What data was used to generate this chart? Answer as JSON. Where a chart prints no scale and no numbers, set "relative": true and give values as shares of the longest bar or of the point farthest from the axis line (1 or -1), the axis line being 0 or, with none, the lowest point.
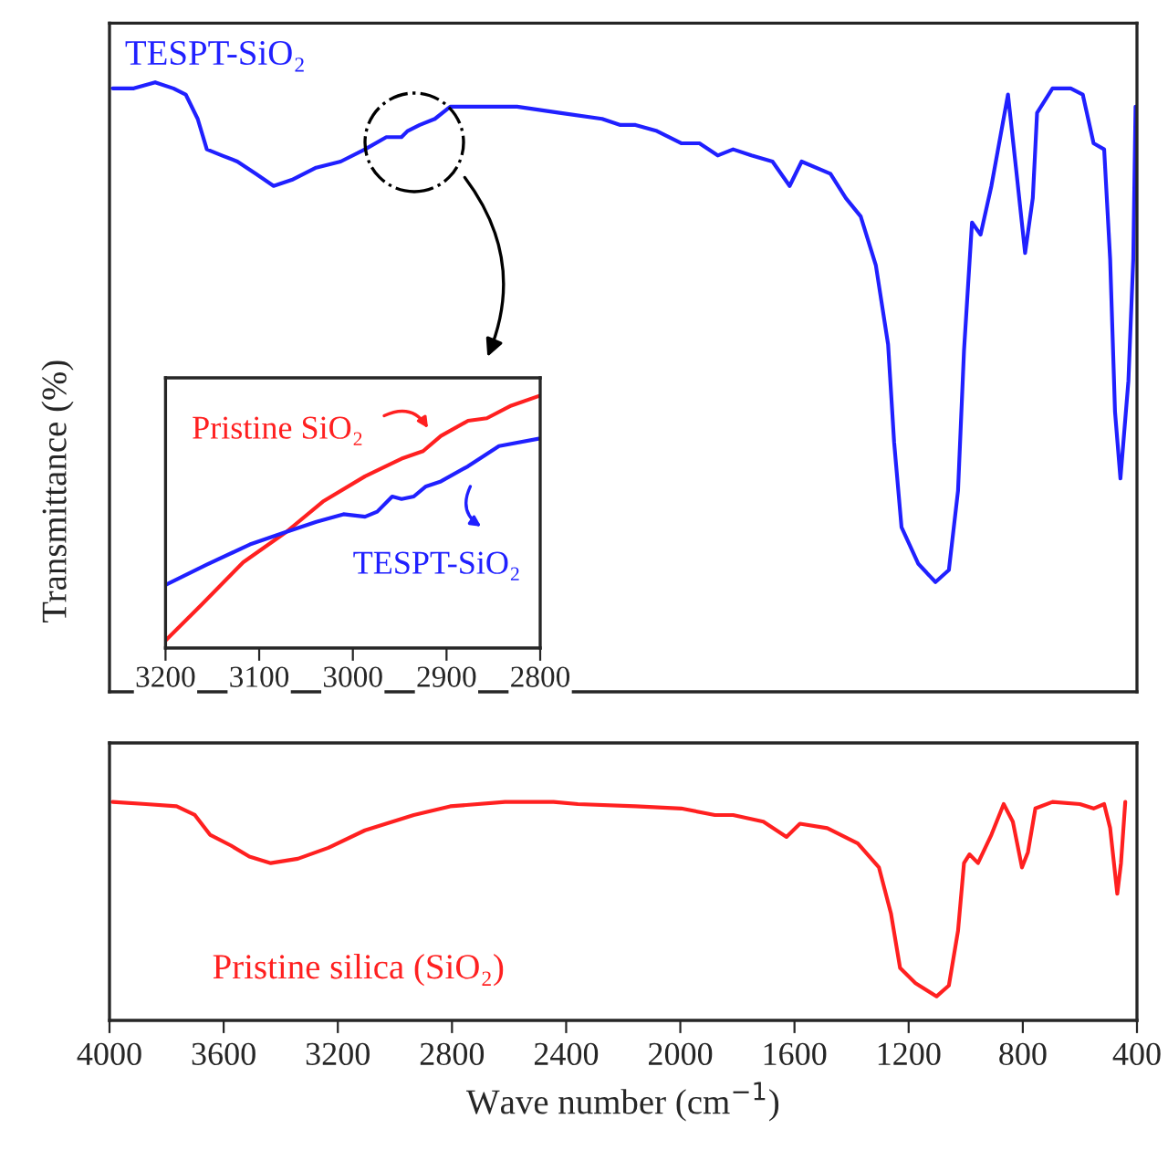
{
  "chart_data": [
    {
      "type": "line",
      "ylabel": "Transmittance (%)",
      "relative": true,
      "xlim": [
        4000,
        400
      ],
      "tick_labels": false,
      "legend": false,
      "grid": false,
      "series": [
        {
          "name": "TESPT-SiO₂",
          "color": "#2020ff",
          "x": [
            3989,
            3915,
            3840,
            3776,
            3733,
            3691,
            3659,
            3606,
            3552,
            3488,
            3425,
            3361,
            3276,
            3190,
            3105,
            3030,
            2977,
            2956,
            2913,
            2860,
            2806,
            2700,
            2572,
            2423,
            2274,
            2210,
            2157,
            2082,
            1997,
            1933,
            1869,
            1815,
            1751,
            1677,
            1617,
            1575,
            1474,
            1420,
            1368,
            1315,
            1272,
            1251,
            1225,
            1166,
            1106,
            1059,
            1027,
            1006,
            978,
            948,
            910,
            852,
            824,
            792,
            765,
            750,
            696,
            632,
            590,
            552,
            515,
            494,
            477,
            458,
            430,
            413,
            405
          ],
          "values": [
            0.99,
            0.99,
            1.0,
            0.99,
            0.98,
            0.94,
            0.89,
            0.88,
            0.87,
            0.85,
            0.83,
            0.84,
            0.86,
            0.87,
            0.89,
            0.91,
            0.91,
            0.92,
            0.93,
            0.94,
            0.96,
            0.96,
            0.96,
            0.95,
            0.94,
            0.93,
            0.93,
            0.92,
            0.9,
            0.9,
            0.88,
            0.89,
            0.88,
            0.87,
            0.83,
            0.87,
            0.85,
            0.81,
            0.78,
            0.7,
            0.57,
            0.41,
            0.27,
            0.21,
            0.18,
            0.2,
            0.33,
            0.56,
            0.77,
            0.75,
            0.83,
            0.98,
            0.86,
            0.72,
            0.81,
            0.95,
            0.99,
            0.99,
            0.98,
            0.9,
            0.89,
            0.71,
            0.46,
            0.35,
            0.51,
            0.71,
            0.96
          ]
        }
      ]
    },
    {
      "type": "line",
      "relative": true,
      "xlim": [
        3200,
        2800
      ],
      "xticks": [
        3200,
        3100,
        3000,
        2900,
        2800
      ],
      "tick_labels": "x",
      "grid": false,
      "series": [
        {
          "name": "Pristine SiO₂",
          "color": "#ff2020",
          "x": [
            3200,
            3162,
            3117,
            3071,
            3032,
            2987,
            2948,
            2925,
            2906,
            2877,
            2857,
            2831,
            2800
          ],
          "values": [
            0.03,
            0.17,
            0.34,
            0.46,
            0.58,
            0.68,
            0.75,
            0.78,
            0.84,
            0.9,
            0.91,
            0.96,
            1.0
          ]
        },
        {
          "name": "TESPT-SiO₂",
          "color": "#2020ff",
          "x": [
            3200,
            3156,
            3110,
            3071,
            3039,
            3010,
            2987,
            2974,
            2958,
            2948,
            2935,
            2922,
            2906,
            2877,
            2844,
            2800
          ],
          "values": [
            0.25,
            0.33,
            0.41,
            0.46,
            0.5,
            0.53,
            0.52,
            0.54,
            0.6,
            0.59,
            0.6,
            0.64,
            0.66,
            0.72,
            0.8,
            0.83
          ]
        }
      ]
    },
    {
      "type": "line",
      "xlabel": "Wave number (cm$^{−1}$)",
      "relative": true,
      "xlim": [
        4000,
        400
      ],
      "xticks": [
        4000,
        3600,
        3200,
        2800,
        2400,
        2000,
        1600,
        1200,
        800,
        400
      ],
      "tick_labels": "x",
      "legend": false,
      "grid": false,
      "series": [
        {
          "name": "Pristine silica (SiO₂)",
          "color": "#ff2020",
          "x": [
            3989,
            3872,
            3765,
            3701,
            3648,
            3574,
            3510,
            3435,
            3340,
            3233,
            3105,
            2934,
            2806,
            2614,
            2444,
            2359,
            2157,
            1997,
            1879,
            1815,
            1709,
            1628,
            1581,
            1485,
            1378,
            1304,
            1262,
            1230,
            1176,
            1102,
            1059,
            1027,
            1006,
            987,
            957,
            910,
            867,
            835,
            803,
            782,
            756,
            696,
            600,
            552,
            515,
            494,
            469,
            456,
            441
          ],
          "values": [
            1.0,
            0.99,
            0.98,
            0.94,
            0.85,
            0.8,
            0.75,
            0.72,
            0.74,
            0.79,
            0.87,
            0.94,
            0.98,
            1.0,
            1.0,
            0.99,
            0.98,
            0.97,
            0.94,
            0.94,
            0.91,
            0.84,
            0.9,
            0.88,
            0.81,
            0.7,
            0.49,
            0.24,
            0.17,
            0.11,
            0.16,
            0.41,
            0.72,
            0.76,
            0.72,
            0.85,
            0.99,
            0.91,
            0.7,
            0.77,
            0.97,
            1.0,
            0.99,
            0.97,
            0.99,
            0.88,
            0.58,
            0.72,
            1.0
          ]
        }
      ]
    }
  ]
}
